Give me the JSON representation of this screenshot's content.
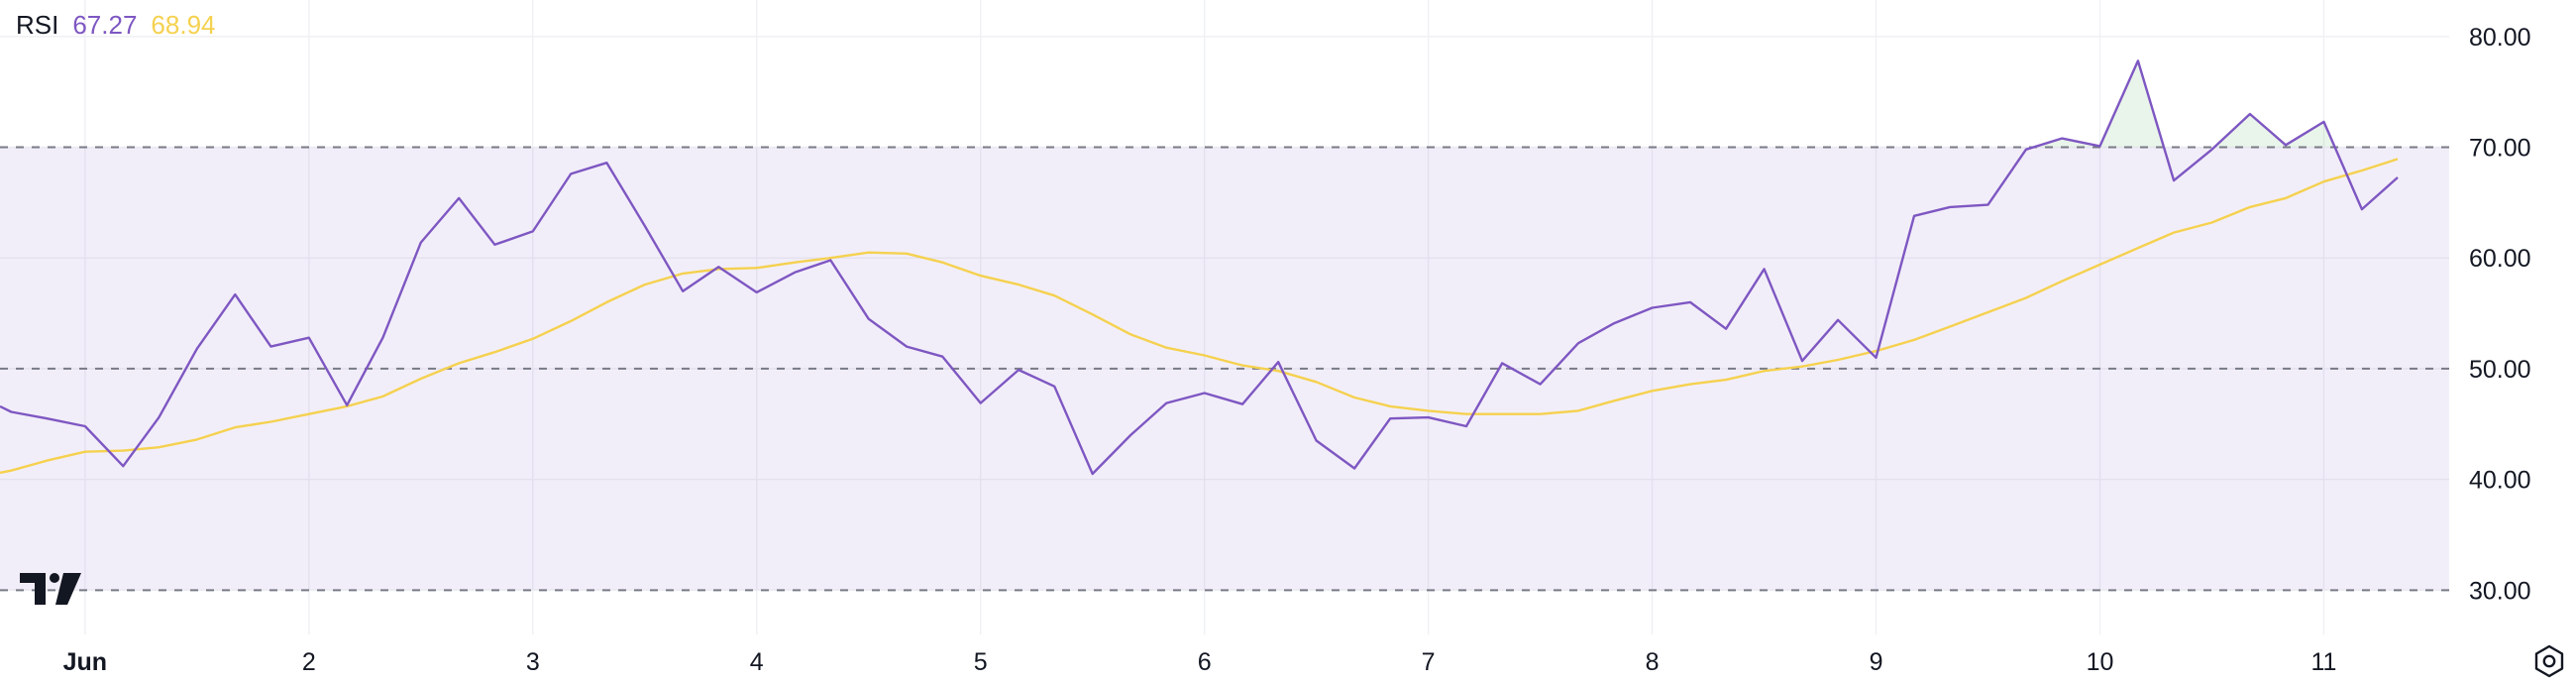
{
  "chart_data": {
    "type": "line",
    "title": "",
    "xlabel": "",
    "ylabel": "",
    "legend": {
      "indicator": "RSI",
      "rsi_value": "67.27",
      "ma_value": "68.94"
    },
    "ylim": [
      26.0,
      83.3
    ],
    "y_ticks": [
      "80.00",
      "70.00",
      "60.00",
      "50.00",
      "40.00",
      "30.00"
    ],
    "y_tick_values": [
      80,
      70,
      60,
      50,
      40,
      30
    ],
    "x_ticks": [
      "Jun",
      "2",
      "3",
      "4",
      "5",
      "6",
      "7",
      "8",
      "9",
      "10",
      "11"
    ],
    "x_tick_values": [
      1,
      2,
      3,
      4,
      5,
      6,
      7,
      8,
      9,
      10,
      11
    ],
    "xlim": [
      0.62,
      11.56
    ],
    "overbought": 70,
    "oversold": 30,
    "midline": 50,
    "grid": true,
    "series": [
      {
        "name": "RSI",
        "color": "#7e57c2",
        "x": [
          0.62,
          0.67,
          0.83,
          1.0,
          1.17,
          1.33,
          1.5,
          1.67,
          1.83,
          2.0,
          2.17,
          2.33,
          2.5,
          2.67,
          2.83,
          3.0,
          3.17,
          3.33,
          3.5,
          3.67,
          3.83,
          4.0,
          4.17,
          4.33,
          4.5,
          4.67,
          4.83,
          5.0,
          5.17,
          5.33,
          5.5,
          5.67,
          5.83,
          6.0,
          6.17,
          6.33,
          6.5,
          6.67,
          6.83,
          7.0,
          7.17,
          7.33,
          7.5,
          7.67,
          7.83,
          8.0,
          8.17,
          8.33,
          8.5,
          8.67,
          8.83,
          9.0,
          9.17,
          9.33,
          9.5,
          9.67,
          9.83,
          10.0,
          10.17,
          10.33,
          10.5,
          10.67,
          10.83,
          11.0,
          11.17,
          11.33
        ],
        "values": [
          46.6,
          46.1,
          45.5,
          44.8,
          41.2,
          45.6,
          51.8,
          56.7,
          52.0,
          52.8,
          46.7,
          52.8,
          61.4,
          65.4,
          61.2,
          62.4,
          67.6,
          68.6,
          62.9,
          57.0,
          59.2,
          56.9,
          58.7,
          59.8,
          54.5,
          52.0,
          51.1,
          46.9,
          49.9,
          48.4,
          40.5,
          44.0,
          46.9,
          47.8,
          46.8,
          50.6,
          43.5,
          41.0,
          45.5,
          45.6,
          44.8,
          50.5,
          48.6,
          52.3,
          54.1,
          55.5,
          56.0,
          53.6,
          59.0,
          50.7,
          54.4,
          51.0,
          63.8,
          64.6,
          64.8,
          69.8,
          70.8,
          70.1,
          77.8,
          67.0,
          69.8,
          73.0,
          70.2,
          72.3,
          64.4,
          67.27
        ]
      },
      {
        "name": "MA",
        "color": "#f5d14f",
        "x": [
          0.62,
          0.67,
          0.83,
          1.0,
          1.17,
          1.33,
          1.5,
          1.67,
          1.83,
          2.0,
          2.17,
          2.33,
          2.5,
          2.67,
          2.83,
          3.0,
          3.17,
          3.33,
          3.5,
          3.67,
          3.83,
          4.0,
          4.17,
          4.33,
          4.5,
          4.67,
          4.83,
          5.0,
          5.17,
          5.33,
          5.5,
          5.67,
          5.83,
          6.0,
          6.17,
          6.33,
          6.5,
          6.67,
          6.83,
          7.0,
          7.17,
          7.33,
          7.5,
          7.67,
          7.83,
          8.0,
          8.17,
          8.33,
          8.5,
          8.67,
          8.83,
          9.0,
          9.17,
          9.33,
          9.5,
          9.67,
          9.83,
          10.0,
          10.17,
          10.33,
          10.5,
          10.67,
          10.83,
          11.0,
          11.17,
          11.33
        ],
        "values": [
          40.6,
          40.8,
          41.7,
          42.5,
          42.6,
          42.9,
          43.6,
          44.7,
          45.2,
          45.9,
          46.6,
          47.5,
          49.1,
          50.5,
          51.5,
          52.7,
          54.3,
          56.0,
          57.6,
          58.6,
          59.0,
          59.1,
          59.6,
          60.0,
          60.5,
          60.4,
          59.6,
          58.4,
          57.6,
          56.6,
          54.9,
          53.1,
          51.9,
          51.2,
          50.3,
          49.8,
          48.8,
          47.4,
          46.6,
          46.2,
          45.9,
          45.9,
          45.9,
          46.2,
          47.1,
          48.0,
          48.6,
          49.0,
          49.8,
          50.2,
          50.8,
          51.6,
          52.6,
          53.8,
          55.1,
          56.4,
          57.9,
          59.4,
          60.9,
          62.3,
          63.2,
          64.6,
          65.4,
          66.9,
          67.9,
          68.94
        ]
      }
    ]
  },
  "colors": {
    "band_fill": "#7e57c2",
    "overbought_fill": "#4caf50",
    "grid": "#f0f1f4",
    "level_line": "#787b86",
    "legend_label": "#131722"
  },
  "icons": {
    "logo": "tradingview-logo-icon",
    "settings": "settings-gear-icon"
  }
}
